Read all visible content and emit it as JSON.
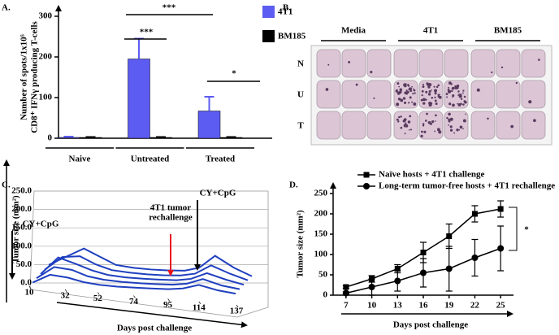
{
  "chart_data": [
    {
      "type": "bar",
      "panel_label": "A.",
      "ylabel": [
        "Number of spots/1x10⁵",
        "CD8⁺ IFNγ producing T-cells"
      ],
      "categories": [
        "Naive",
        "Untreated",
        "Treated"
      ],
      "series": [
        {
          "name": "4T1",
          "color": "#5c5cf2",
          "values": [
            2,
            195,
            67
          ],
          "error": [
            2,
            50,
            35
          ]
        },
        {
          "name": "BM185",
          "color": "#000000",
          "values": [
            2,
            2,
            2
          ],
          "error": [
            1,
            1,
            1
          ]
        }
      ],
      "ylim": [
        0,
        300
      ],
      "yticks": [
        0,
        100,
        200,
        300
      ],
      "annotations": [
        "***",
        "***",
        "*"
      ]
    },
    {
      "type": "line3d",
      "panel_label": "C.",
      "ylabel": "Tumor size (mm²)",
      "xlabel": "Days post challenge",
      "x": [
        10,
        21,
        32,
        42,
        52,
        63,
        74,
        84,
        95,
        104,
        114,
        126,
        137
      ],
      "xlim": [
        10,
        137
      ],
      "xticks": [
        10,
        32,
        52,
        74,
        95,
        114,
        137
      ],
      "ylim": [
        0,
        250
      ],
      "yticks": [
        {
          "value": 0,
          "label": "0.0"
        },
        {
          "value": 50,
          "label": "50.0"
        },
        {
          "value": 100,
          "label": "100.0"
        },
        {
          "value": 150,
          "label": "150.0"
        },
        {
          "value": 200,
          "label": "200.0"
        },
        {
          "value": 250,
          "label": "250.0"
        }
      ],
      "grid": true,
      "series": [
        {
          "color": "#1f3fbf",
          "values": [
            5,
            30,
            55,
            35,
            15,
            10,
            8,
            8,
            10,
            20,
            55,
            25,
            5
          ]
        },
        {
          "color": "#1f3fbf",
          "values": [
            3,
            40,
            45,
            25,
            12,
            8,
            6,
            6,
            8,
            15,
            40,
            20,
            5
          ]
        },
        {
          "color": "#1f3fbf",
          "values": [
            2,
            50,
            35,
            20,
            10,
            6,
            5,
            5,
            6,
            12,
            30,
            15,
            4
          ]
        },
        {
          "color": "#1f3fbf",
          "values": [
            2,
            35,
            30,
            15,
            8,
            5,
            4,
            4,
            5,
            10,
            25,
            10,
            3
          ]
        },
        {
          "color": "#1f3fbf",
          "values": [
            1,
            25,
            20,
            10,
            5,
            3,
            3,
            3,
            4,
            8,
            20,
            8,
            2
          ]
        }
      ],
      "annotations": [
        {
          "text": [
            "CY+CpG"
          ],
          "arrow_color": "#000000"
        },
        {
          "text": [
            "4T1 tumor",
            "rechallenge"
          ],
          "arrow_color": "#e8141e"
        },
        {
          "text": [
            "CY+CpG"
          ],
          "arrow_color": "#000000"
        }
      ]
    },
    {
      "type": "line",
      "panel_label": "D.",
      "ylabel": "Tumor size (mm²)",
      "xlabel": "Days post challenge",
      "x": [
        7,
        10,
        13,
        16,
        19,
        22,
        25
      ],
      "xlim": [
        5.5,
        26.5
      ],
      "xticks": [
        7,
        10,
        13,
        16,
        19,
        22,
        25
      ],
      "ylim": [
        0,
        250
      ],
      "yticks": [
        0,
        50,
        100,
        150,
        200,
        250
      ],
      "series": [
        {
          "name": "Naïve hosts + 4T1 challenge",
          "color": "#000000",
          "marker": "square",
          "values": [
            20,
            40,
            65,
            105,
            145,
            200,
            212
          ],
          "error": [
            3,
            8,
            10,
            25,
            30,
            20,
            20
          ]
        },
        {
          "name": "Long-term tumor-free hosts + 4T1 rechallenge",
          "color": "#000000",
          "marker": "circle",
          "values": [
            5,
            20,
            35,
            55,
            65,
            92,
            115
          ],
          "error": [
            3,
            20,
            25,
            35,
            55,
            45,
            55
          ]
        }
      ],
      "annotations": [
        "*"
      ]
    }
  ],
  "plate_image": {
    "panel_label": "B.",
    "columns": [
      "Media",
      "4T1",
      "BM185"
    ],
    "rows": [
      "N",
      "U",
      "T"
    ]
  }
}
